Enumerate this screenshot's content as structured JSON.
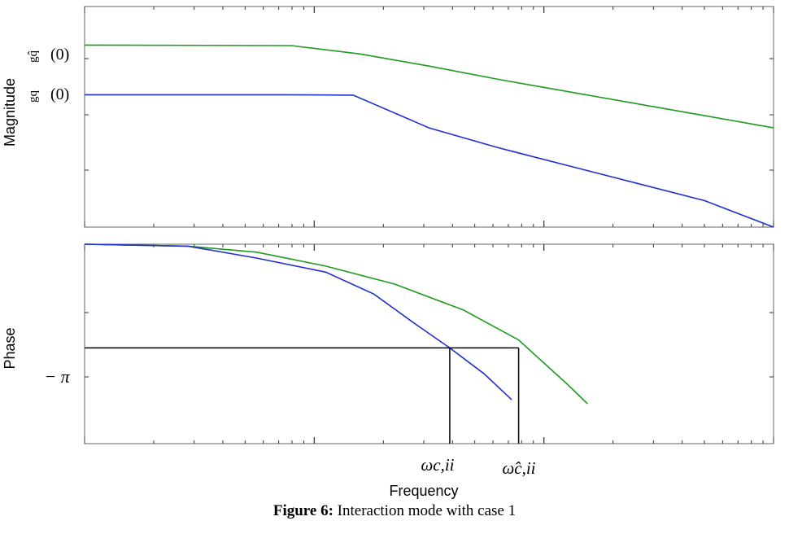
{
  "caption": {
    "label": "Figure 6:",
    "text": "Interaction mode with case 1"
  },
  "chart_data": [
    {
      "type": "line",
      "panel": "magnitude",
      "ylabel": "Magnitude",
      "x_scale": "log",
      "grid": false,
      "y_tick_labels": [
        "ĝqᵢᵢ (0)",
        "gqᵢᵢ (0)"
      ],
      "series": [
        {
          "color": "#1f9a1f",
          "x": [
            0,
            0.3,
            0.4,
            0.5,
            0.6,
            0.7,
            0.8,
            0.9,
            1.0
          ],
          "y": [
            0.825,
            0.823,
            0.785,
            0.73,
            0.67,
            0.615,
            0.56,
            0.505,
            0.45
          ]
        },
        {
          "color": "#1f2fd0",
          "x": [
            0,
            0.29,
            0.39,
            0.5,
            0.6,
            0.7,
            0.8,
            0.9,
            1.0
          ],
          "y": [
            0.6,
            0.6,
            0.598,
            0.45,
            0.36,
            0.28,
            0.2,
            0.12,
            0.0
          ]
        }
      ]
    },
    {
      "type": "line",
      "panel": "phase",
      "ylabel": "Phase",
      "xlabel": "Frequency",
      "x_scale": "log",
      "grid": false,
      "y_tick_labels": [
        "− π"
      ],
      "series": [
        {
          "color": "#1f9a1f",
          "x": [
            0,
            0.15,
            0.25,
            0.35,
            0.45,
            0.55,
            0.63,
            0.7,
            0.73
          ],
          "y": [
            1.0,
            0.99,
            0.96,
            0.89,
            0.8,
            0.67,
            0.52,
            0.3,
            0.2
          ]
        },
        {
          "color": "#1f2fd0",
          "x": [
            0,
            0.15,
            0.25,
            0.35,
            0.42,
            0.48,
            0.53,
            0.58,
            0.62
          ],
          "y": [
            1.0,
            0.99,
            0.93,
            0.86,
            0.75,
            0.6,
            0.48,
            0.35,
            0.22
          ]
        }
      ],
      "reference_lines": {
        "minus_pi_level": 0.48,
        "crossover_x": [
          0.53,
          0.63
        ]
      },
      "annotations": [
        "ωc,ii",
        "ω̂c,ii"
      ]
    }
  ]
}
